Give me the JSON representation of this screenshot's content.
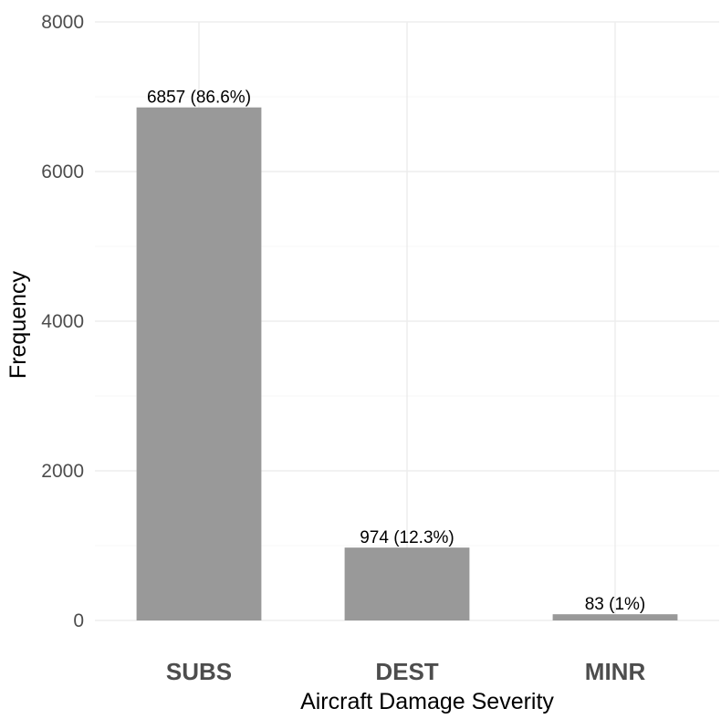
{
  "chart_data": {
    "type": "bar",
    "title": "",
    "xlabel": "Aircraft Damage Severity",
    "ylabel": "Frequency",
    "categories": [
      "SUBS",
      "DEST",
      "MINR"
    ],
    "values": [
      6857,
      974,
      83
    ],
    "data_labels": [
      "6857 (86.6%)",
      "974 (12.3%)",
      "83 (1%)"
    ],
    "ylim": [
      0,
      8000
    ],
    "y_ticks": [
      0,
      2000,
      4000,
      6000,
      8000
    ],
    "y_tick_labels": [
      "0",
      "2000",
      "4000",
      "6000",
      "8000"
    ],
    "grid": true,
    "legend": "none",
    "colors": {
      "bar": "#999999",
      "grid_major": "#ebebeb",
      "grid_minor": "#f4f4f4",
      "tick_text": "#4d4d4d"
    }
  }
}
